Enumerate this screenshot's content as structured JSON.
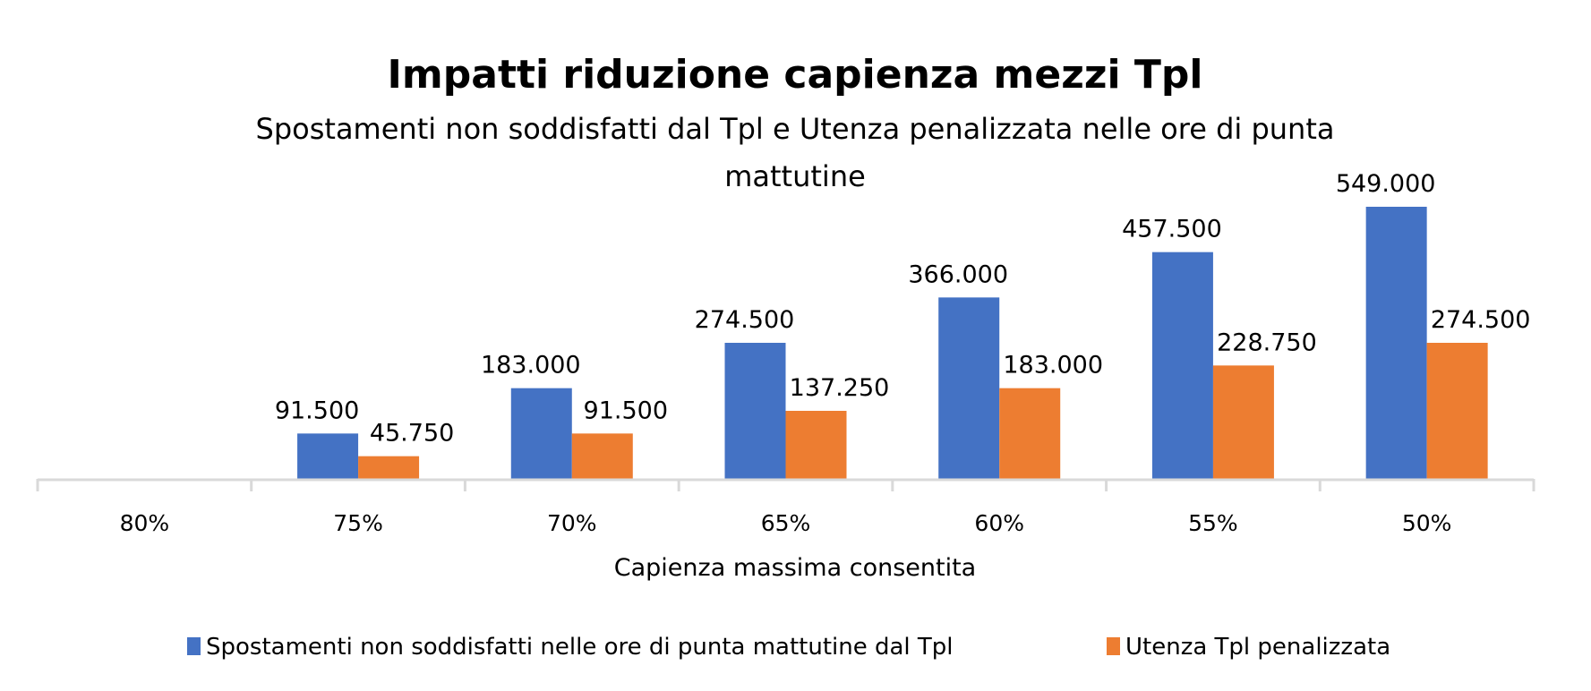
{
  "chart_data": {
    "type": "bar",
    "title": "Impatti riduzione capienza mezzi Tpl",
    "subtitle_line1": "Spostamenti non soddisfatti dal Tpl e Utenza penalizzata nelle ore di punta",
    "subtitle_line2": "mattutine",
    "xlabel": "Capienza massima consentita",
    "ylabel": "",
    "categories": [
      "80%",
      "75%",
      "70%",
      "65%",
      "60%",
      "55%",
      "50%"
    ],
    "series": [
      {
        "name": "Spostamenti non soddisfatti nelle ore di punta mattutine dal Tpl",
        "color": "#4472C4",
        "values": [
          0,
          91500,
          183000,
          274500,
          366000,
          457500,
          549000
        ],
        "labels": [
          "",
          "91.500",
          "183.000",
          "274.500",
          "366.000",
          "457.500",
          "549.000"
        ]
      },
      {
        "name": "Utenza Tpl penalizzata",
        "color": "#ED7D31",
        "values": [
          0,
          45750,
          91500,
          137250,
          183000,
          228750,
          274500
        ],
        "labels": [
          "",
          "45.750",
          "91.500",
          "137.250",
          "183.000",
          "228.750",
          "274.500"
        ]
      }
    ],
    "ylim": [
      0,
      549000
    ],
    "grid": false,
    "legend_position": "bottom",
    "axis_color": "#D9D9D9"
  }
}
